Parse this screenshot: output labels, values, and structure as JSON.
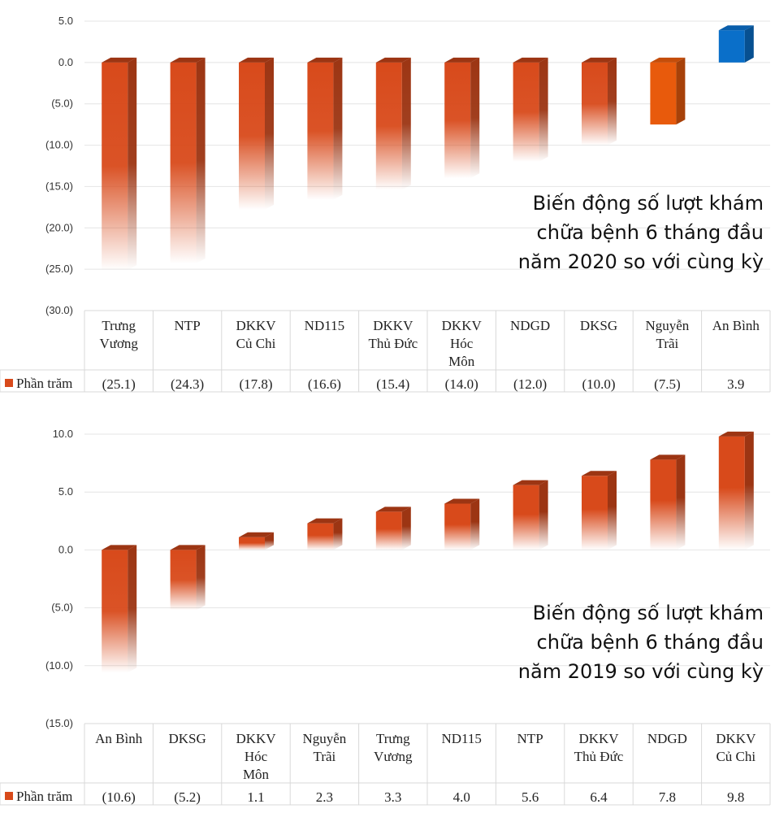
{
  "chart_data": [
    {
      "type": "bar",
      "title": "",
      "annotation": [
        "Biến động số lượt khám",
        "chữa bệnh 6 tháng đầu",
        "năm 2020 so với cùng kỳ"
      ],
      "categories": [
        [
          "Trưng",
          "Vương"
        ],
        [
          "NTP"
        ],
        [
          "DKKV",
          "Củ Chi"
        ],
        [
          "ND115"
        ],
        [
          "DKKV",
          "Thủ Đức"
        ],
        [
          "DKKV",
          "Hóc",
          "Môn"
        ],
        [
          "NDGD"
        ],
        [
          "DKSG"
        ],
        [
          "Nguyễn",
          "Trãi"
        ],
        [
          "An Bình"
        ]
      ],
      "series": [
        {
          "name": "Phần trăm",
          "values": [
            -25.1,
            -24.3,
            -17.8,
            -16.6,
            -15.4,
            -14.0,
            -12.0,
            -10.0,
            -7.5,
            3.9
          ]
        }
      ],
      "value_labels": [
        "(25.1)",
        "(24.3)",
        "(17.8)",
        "(16.6)",
        "(15.4)",
        "(14.0)",
        "(12.0)",
        "(10.0)",
        "(7.5)",
        "3.9"
      ],
      "yticks": [
        5.0,
        0.0,
        -5.0,
        -10.0,
        -15.0,
        -20.0,
        -25.0,
        -30.0
      ],
      "ytick_labels": [
        "5.0",
        "0.0",
        "(5.0)",
        "(10.0)",
        "(15.0)",
        "(20.0)",
        "(25.0)",
        "(30.0)"
      ],
      "ylim": [
        -30,
        5
      ],
      "legend": "Phần trăm",
      "legend_placement": "data-table",
      "grid": true,
      "colors": {
        "negative": "#d84a1b",
        "highlight": "#e85a0c",
        "positive": "#0a6fc9"
      },
      "highlight_index": 8
    },
    {
      "type": "bar",
      "title": "",
      "annotation": [
        "Biến động số lượt khám",
        "chữa bệnh 6 tháng đầu",
        "năm 2019 so với cùng kỳ"
      ],
      "categories": [
        [
          "An Bình"
        ],
        [
          "DKSG"
        ],
        [
          "DKKV",
          "Hóc",
          "Môn"
        ],
        [
          "Nguyễn",
          "Trãi"
        ],
        [
          "Trưng",
          "Vương"
        ],
        [
          "ND115"
        ],
        [
          "NTP"
        ],
        [
          "DKKV",
          "Thủ Đức"
        ],
        [
          "NDGD"
        ],
        [
          "DKKV",
          "Củ Chi"
        ]
      ],
      "series": [
        {
          "name": "Phần trăm",
          "values": [
            -10.6,
            -5.2,
            1.1,
            2.3,
            3.3,
            4.0,
            5.6,
            6.4,
            7.8,
            9.8
          ]
        }
      ],
      "value_labels": [
        "(10.6)",
        "(5.2)",
        "1.1",
        "2.3",
        "3.3",
        "4.0",
        "5.6",
        "6.4",
        "7.8",
        "9.8"
      ],
      "yticks": [
        10.0,
        5.0,
        0.0,
        -5.0,
        -10.0,
        -15.0
      ],
      "ytick_labels": [
        "10.0",
        "5.0",
        "0.0",
        "(5.0)",
        "(10.0)",
        "(15.0)"
      ],
      "ylim": [
        -15,
        10
      ],
      "legend": "Phần trăm",
      "legend_placement": "data-table",
      "grid": true,
      "colors": {
        "negative": "#d84a1b",
        "positive": "#d84a1b"
      }
    }
  ]
}
